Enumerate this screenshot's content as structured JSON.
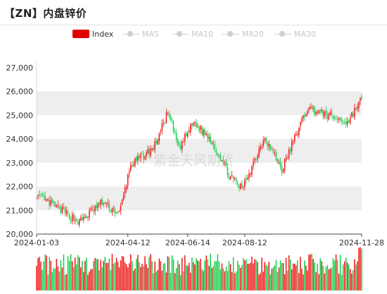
{
  "title": "【ZN】内盘锌价",
  "watermark": "紫金天风期货",
  "legend": [
    {
      "label": "Index",
      "color": "#e00000",
      "active": true
    },
    {
      "label": "MA5",
      "color": "#cfcfcf",
      "active": false
    },
    {
      "label": "MA10",
      "color": "#cfcfcf",
      "active": false
    },
    {
      "label": "MA20",
      "color": "#cfcfcf",
      "active": false
    },
    {
      "label": "MA30",
      "color": "#cfcfcf",
      "active": false
    }
  ],
  "colors": {
    "up": "#ee1111",
    "down": "#11cc44",
    "band": "#eeeeee"
  },
  "chart_data": {
    "type": "candlestick",
    "y_ticks": [
      "27,000",
      "26,000",
      "25,000",
      "24,000",
      "23,000",
      "22,000",
      "21,000",
      "20,000"
    ],
    "ylim": [
      20000,
      27000
    ],
    "x_ticks": [
      "2024-01-03",
      "2024-04-12",
      "2024-06-14",
      "2024-08-12",
      "2024-11-28"
    ],
    "x_tick_index": [
      0,
      64,
      106,
      146,
      228
    ],
    "grid": "horizontal alternating bands",
    "legend_position": "top-center",
    "volume_panel": true,
    "key_points": [
      {
        "index": 0,
        "close": 21600,
        "date": "2024-01-03"
      },
      {
        "index": 15,
        "close": 21100
      },
      {
        "index": 30,
        "close": 20500
      },
      {
        "index": 46,
        "close": 21350
      },
      {
        "index": 58,
        "close": 20850
      },
      {
        "index": 66,
        "close": 22900
      },
      {
        "index": 82,
        "close": 23600
      },
      {
        "index": 92,
        "close": 25100
      },
      {
        "index": 100,
        "close": 23600
      },
      {
        "index": 110,
        "close": 24700
      },
      {
        "index": 122,
        "close": 24000
      },
      {
        "index": 136,
        "close": 22400
      },
      {
        "index": 144,
        "close": 21900
      },
      {
        "index": 160,
        "close": 24100
      },
      {
        "index": 172,
        "close": 22700
      },
      {
        "index": 182,
        "close": 24200
      },
      {
        "index": 190,
        "close": 25300
      },
      {
        "index": 204,
        "close": 25000
      },
      {
        "index": 218,
        "close": 24700
      },
      {
        "index": 228,
        "close": 25700,
        "date": "2024-11-28"
      }
    ]
  }
}
